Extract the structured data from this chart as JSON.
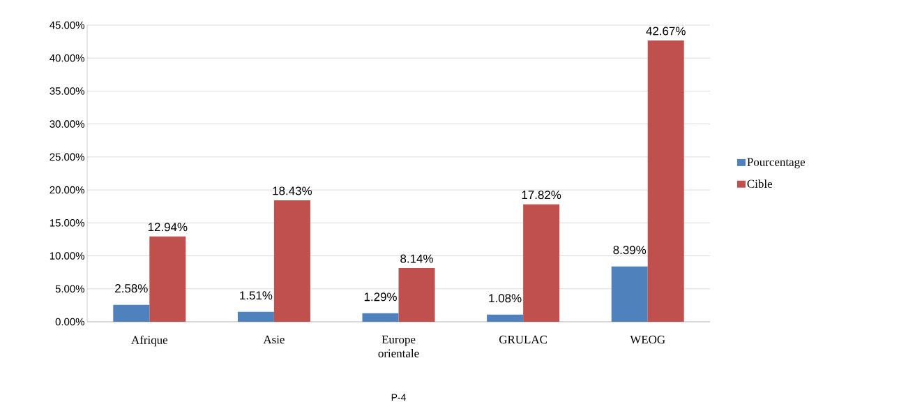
{
  "chart_data": {
    "type": "bar",
    "categories": [
      "Afrique",
      "Asie",
      "Europe orientale",
      "GRULAC",
      "WEOG"
    ],
    "xlabel": "P-4",
    "series": [
      {
        "name": "Pourcentage",
        "color": "#4f81bd",
        "values": [
          2.58,
          1.51,
          1.29,
          1.08,
          8.39
        ],
        "value_labels": [
          "2.58%",
          "1.51%",
          "1.29%",
          "1.08%",
          "8.39%"
        ]
      },
      {
        "name": "Cible",
        "color": "#c0504d",
        "values": [
          12.94,
          18.43,
          8.14,
          17.82,
          42.67
        ],
        "value_labels": [
          "12.94%",
          "18.43%",
          "8.14%",
          "17.82%",
          "42.67%"
        ]
      }
    ],
    "ylim": [
      0,
      45
    ],
    "yticks": [
      {
        "value": 0,
        "label": "0.00%"
      },
      {
        "value": 5,
        "label": "5.00%"
      },
      {
        "value": 10,
        "label": "10.00%"
      },
      {
        "value": 15,
        "label": "15.00%"
      },
      {
        "value": 20,
        "label": "20.00%"
      },
      {
        "value": 25,
        "label": "25.00%"
      },
      {
        "value": 30,
        "label": "30.00%"
      },
      {
        "value": 35,
        "label": "35.00%"
      },
      {
        "value": 40,
        "label": "40.00%"
      },
      {
        "value": 45,
        "label": "45.00%"
      }
    ],
    "grid": "y",
    "legend": "right"
  }
}
